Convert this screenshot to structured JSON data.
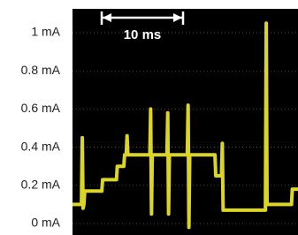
{
  "chart_data": {
    "type": "line",
    "annotation": "10 ms",
    "x": [
      0,
      1.1,
      1.2,
      1.3,
      1.4,
      1.5,
      3.6,
      3.7,
      5.4,
      5.5,
      6.3,
      6.4,
      6.6,
      6.7,
      6.8,
      9.5,
      9.6,
      9.7,
      9.8,
      11.6,
      11.7,
      11.8,
      11.9,
      14.1,
      14.2,
      14.3,
      14.4,
      17.5,
      17.6,
      18.3,
      18.4,
      18.5,
      23.7,
      23.8,
      23.9,
      26.9,
      27.0,
      27.7
    ],
    "series": [
      {
        "color": "#f2ec2a",
        "values": [
          0.1,
          0.1,
          0.45,
          0.08,
          0.1,
          0.17,
          0.17,
          0.23,
          0.23,
          0.3,
          0.3,
          0.36,
          0.36,
          0.46,
          0.36,
          0.36,
          0.6,
          0.05,
          0.36,
          0.36,
          0.58,
          0.05,
          0.36,
          0.36,
          0.62,
          -0.02,
          0.36,
          0.36,
          0.25,
          0.25,
          0.42,
          0.07,
          0.07,
          1.05,
          0.1,
          0.1,
          0.18,
          0.18
        ]
      }
    ],
    "xlim": [
      0,
      27.7
    ],
    "ylim": [
      -0.06,
      1.125
    ],
    "yticks": [
      {
        "value": 0,
        "label": "0 mA"
      },
      {
        "value": 0.2,
        "label": "0.2 mA"
      },
      {
        "value": 0.4,
        "label": "0.4 mA"
      },
      {
        "value": 0.6,
        "label": "0.6 mA"
      },
      {
        "value": 0.8,
        "label": "0.8 mA"
      },
      {
        "value": 1,
        "label": "1 mA"
      }
    ],
    "grid": true
  }
}
